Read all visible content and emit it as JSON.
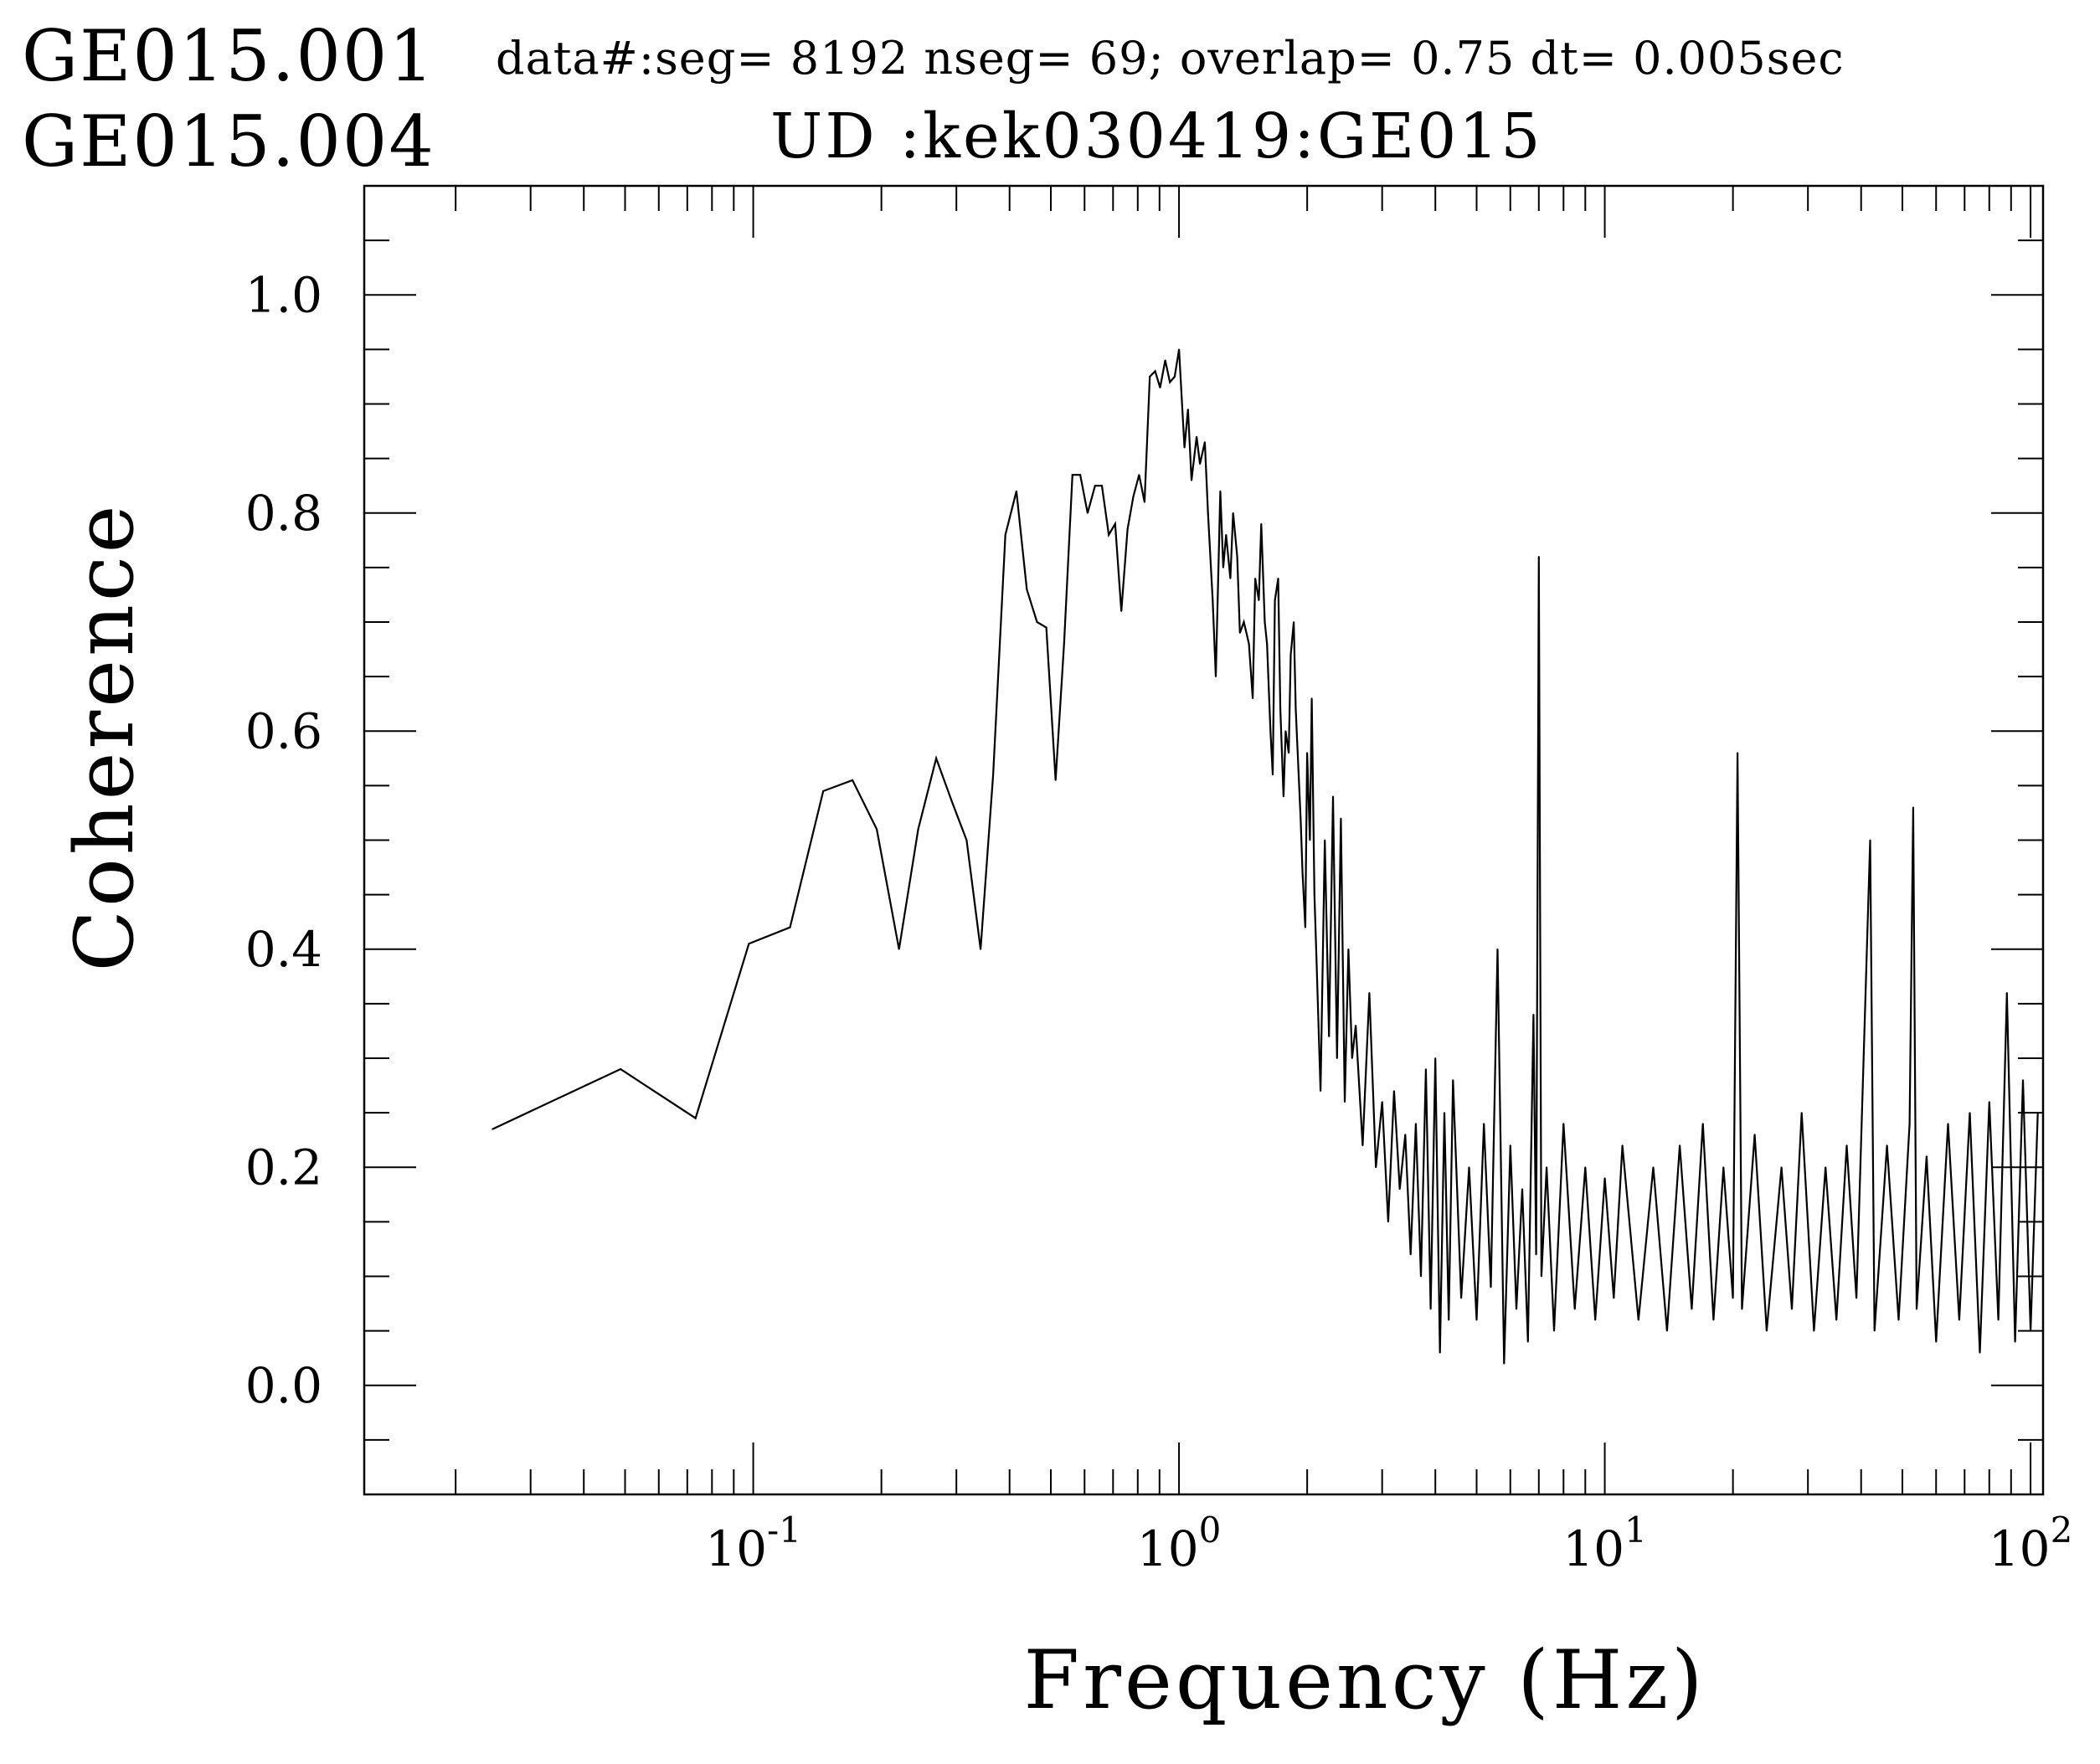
{
  "header": {
    "channel_a": "GE015.001",
    "channel_b": "GE015.004",
    "params": "data#:seg= 8192 nseg= 69; overlap=  0.75 dt=  0.005sec",
    "subtitle": "UD   :kek030419:GE015"
  },
  "chart_data": {
    "type": "line",
    "title": "",
    "xlabel": "Frequency (Hz)",
    "ylabel": "Coherence",
    "xscale": "log",
    "xlim": [
      0.0122,
      107
    ],
    "ylim": [
      -0.1,
      1.1
    ],
    "x_ticks": [
      {
        "value": 0.1,
        "base": "10",
        "exp": "-1"
      },
      {
        "value": 1,
        "base": "10",
        "exp": "0"
      },
      {
        "value": 10,
        "base": "10",
        "exp": "1"
      },
      {
        "value": 100,
        "base": "10",
        "exp": "2"
      }
    ],
    "y_ticks": [
      {
        "value": 0.0,
        "label": "0.0"
      },
      {
        "value": 0.2,
        "label": "0.2"
      },
      {
        "value": 0.4,
        "label": "0.4"
      },
      {
        "value": 0.6,
        "label": "0.6"
      },
      {
        "value": 0.8,
        "label": "0.8"
      },
      {
        "value": 1.0,
        "label": "1.0"
      }
    ],
    "grid": false,
    "series": [
      {
        "name": "",
        "color": "#000000",
        "points": [
          [
            0.0244,
            0.235
          ],
          [
            0.0488,
            0.29
          ],
          [
            0.0732,
            0.245
          ],
          [
            0.0977,
            0.405
          ],
          [
            0.122,
            0.42
          ],
          [
            0.146,
            0.545
          ],
          [
            0.171,
            0.555
          ],
          [
            0.195,
            0.51
          ],
          [
            0.22,
            0.4
          ],
          [
            0.244,
            0.51
          ],
          [
            0.269,
            0.575
          ],
          [
            0.293,
            0.535
          ],
          [
            0.317,
            0.5
          ],
          [
            0.342,
            0.4
          ],
          [
            0.366,
            0.56
          ],
          [
            0.391,
            0.78
          ],
          [
            0.415,
            0.82
          ],
          [
            0.439,
            0.73
          ],
          [
            0.464,
            0.7
          ],
          [
            0.488,
            0.695
          ],
          [
            0.513,
            0.555
          ],
          [
            0.537,
            0.68
          ],
          [
            0.562,
            0.835
          ],
          [
            0.586,
            0.835
          ],
          [
            0.61,
            0.8
          ],
          [
            0.635,
            0.825
          ],
          [
            0.659,
            0.825
          ],
          [
            0.684,
            0.78
          ],
          [
            0.708,
            0.79
          ],
          [
            0.732,
            0.71
          ],
          [
            0.757,
            0.785
          ],
          [
            0.781,
            0.815
          ],
          [
            0.806,
            0.835
          ],
          [
            0.83,
            0.81
          ],
          [
            0.854,
            0.925
          ],
          [
            0.879,
            0.93
          ],
          [
            0.903,
            0.915
          ],
          [
            0.928,
            0.94
          ],
          [
            0.952,
            0.92
          ],
          [
            0.977,
            0.925
          ],
          [
            1.0,
            0.95
          ],
          [
            1.03,
            0.86
          ],
          [
            1.05,
            0.895
          ],
          [
            1.07,
            0.83
          ],
          [
            1.1,
            0.87
          ],
          [
            1.12,
            0.845
          ],
          [
            1.15,
            0.865
          ],
          [
            1.17,
            0.8
          ],
          [
            1.2,
            0.72
          ],
          [
            1.22,
            0.65
          ],
          [
            1.25,
            0.82
          ],
          [
            1.27,
            0.75
          ],
          [
            1.29,
            0.78
          ],
          [
            1.32,
            0.74
          ],
          [
            1.34,
            0.8
          ],
          [
            1.37,
            0.76
          ],
          [
            1.39,
            0.69
          ],
          [
            1.42,
            0.7
          ],
          [
            1.44,
            0.69
          ],
          [
            1.46,
            0.68
          ],
          [
            1.49,
            0.63
          ],
          [
            1.51,
            0.74
          ],
          [
            1.54,
            0.72
          ],
          [
            1.56,
            0.79
          ],
          [
            1.59,
            0.7
          ],
          [
            1.61,
            0.68
          ],
          [
            1.64,
            0.6
          ],
          [
            1.66,
            0.56
          ],
          [
            1.68,
            0.72
          ],
          [
            1.71,
            0.74
          ],
          [
            1.73,
            0.62
          ],
          [
            1.76,
            0.54
          ],
          [
            1.78,
            0.6
          ],
          [
            1.81,
            0.58
          ],
          [
            1.83,
            0.67
          ],
          [
            1.86,
            0.7
          ],
          [
            1.88,
            0.62
          ],
          [
            1.9,
            0.58
          ],
          [
            1.93,
            0.52
          ],
          [
            1.95,
            0.47
          ],
          [
            1.98,
            0.42
          ],
          [
            2.0,
            0.58
          ],
          [
            2.03,
            0.5
          ],
          [
            2.05,
            0.63
          ],
          [
            2.08,
            0.45
          ],
          [
            2.1,
            0.4
          ],
          [
            2.15,
            0.27
          ],
          [
            2.2,
            0.5
          ],
          [
            2.25,
            0.32
          ],
          [
            2.3,
            0.54
          ],
          [
            2.35,
            0.3
          ],
          [
            2.4,
            0.52
          ],
          [
            2.45,
            0.26
          ],
          [
            2.5,
            0.4
          ],
          [
            2.55,
            0.3
          ],
          [
            2.6,
            0.33
          ],
          [
            2.7,
            0.22
          ],
          [
            2.8,
            0.36
          ],
          [
            2.9,
            0.2
          ],
          [
            3.0,
            0.26
          ],
          [
            3.1,
            0.15
          ],
          [
            3.2,
            0.27
          ],
          [
            3.3,
            0.18
          ],
          [
            3.4,
            0.23
          ],
          [
            3.5,
            0.12
          ],
          [
            3.6,
            0.24
          ],
          [
            3.7,
            0.1
          ],
          [
            3.8,
            0.29
          ],
          [
            3.9,
            0.07
          ],
          [
            4.0,
            0.3
          ],
          [
            4.1,
            0.03
          ],
          [
            4.2,
            0.25
          ],
          [
            4.3,
            0.06
          ],
          [
            4.4,
            0.28
          ],
          [
            4.6,
            0.08
          ],
          [
            4.8,
            0.2
          ],
          [
            5.0,
            0.06
          ],
          [
            5.2,
            0.24
          ],
          [
            5.4,
            0.09
          ],
          [
            5.6,
            0.4
          ],
          [
            5.8,
            0.02
          ],
          [
            6.0,
            0.22
          ],
          [
            6.2,
            0.07
          ],
          [
            6.4,
            0.18
          ],
          [
            6.6,
            0.04
          ],
          [
            6.8,
            0.34
          ],
          [
            6.9,
            0.12
          ],
          [
            7.0,
            0.76
          ],
          [
            7.1,
            0.1
          ],
          [
            7.3,
            0.2
          ],
          [
            7.6,
            0.05
          ],
          [
            8.0,
            0.24
          ],
          [
            8.5,
            0.07
          ],
          [
            9.0,
            0.2
          ],
          [
            9.5,
            0.06
          ],
          [
            10.0,
            0.19
          ],
          [
            10.5,
            0.08
          ],
          [
            11.0,
            0.22
          ],
          [
            12.0,
            0.06
          ],
          [
            13.0,
            0.2
          ],
          [
            14.0,
            0.05
          ],
          [
            15.0,
            0.22
          ],
          [
            16.0,
            0.07
          ],
          [
            17.0,
            0.24
          ],
          [
            18.0,
            0.06
          ],
          [
            19.0,
            0.2
          ],
          [
            20.0,
            0.08
          ],
          [
            20.5,
            0.58
          ],
          [
            21.0,
            0.07
          ],
          [
            22.5,
            0.23
          ],
          [
            24.0,
            0.05
          ],
          [
            26.0,
            0.2
          ],
          [
            27.5,
            0.07
          ],
          [
            29.0,
            0.25
          ],
          [
            31.0,
            0.05
          ],
          [
            33.0,
            0.2
          ],
          [
            35.0,
            0.06
          ],
          [
            37.0,
            0.22
          ],
          [
            39.0,
            0.08
          ],
          [
            42.0,
            0.5
          ],
          [
            43.0,
            0.05
          ],
          [
            46.0,
            0.22
          ],
          [
            49.0,
            0.06
          ],
          [
            52.0,
            0.24
          ],
          [
            53.0,
            0.53
          ],
          [
            54.0,
            0.07
          ],
          [
            57.0,
            0.21
          ],
          [
            60.0,
            0.04
          ],
          [
            64.0,
            0.24
          ],
          [
            68.0,
            0.06
          ],
          [
            72.0,
            0.25
          ],
          [
            76.0,
            0.03
          ],
          [
            80.0,
            0.26
          ],
          [
            84.0,
            0.06
          ],
          [
            88.0,
            0.36
          ],
          [
            92.0,
            0.04
          ],
          [
            96.0,
            0.28
          ],
          [
            100.0,
            0.05
          ],
          [
            104.0,
            0.25
          ]
        ]
      }
    ]
  }
}
